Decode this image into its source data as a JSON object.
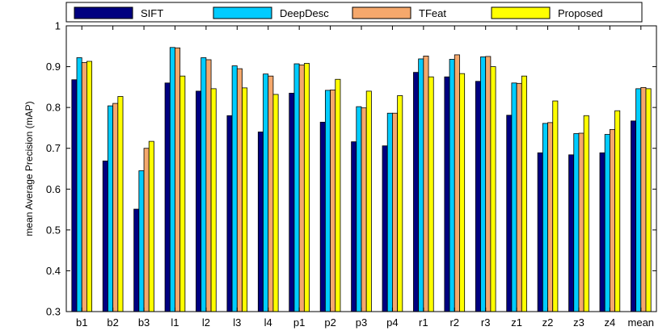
{
  "chart_data": {
    "type": "bar",
    "title": "",
    "xlabel": "",
    "ylabel": "mean Average Precision (mAP)",
    "ylim": [
      0.3,
      1.0
    ],
    "yticks": [
      0.3,
      0.4,
      0.5,
      0.6,
      0.7,
      0.8,
      0.9,
      1.0
    ],
    "ytick_labels": [
      "0.3",
      "0.4",
      "0.5",
      "0.6",
      "0.7",
      "0.8",
      "0.9",
      "1"
    ],
    "grid": false,
    "legend_position": "top",
    "categories": [
      "b1",
      "b2",
      "b3",
      "l1",
      "l2",
      "l3",
      "l4",
      "p1",
      "p2",
      "p3",
      "p4",
      "r1",
      "r2",
      "r3",
      "z1",
      "z2",
      "z3",
      "z4",
      "mean"
    ],
    "series": [
      {
        "name": "SIFT",
        "color": "#000080",
        "values": [
          0.868,
          0.669,
          0.551,
          0.86,
          0.84,
          0.78,
          0.74,
          0.835,
          0.764,
          0.716,
          0.706,
          0.886,
          0.875,
          0.864,
          0.781,
          0.689,
          0.684,
          0.689,
          0.767
        ]
      },
      {
        "name": "DeepDesc",
        "color": "#00CCFF",
        "values": [
          0.922,
          0.804,
          0.645,
          0.947,
          0.922,
          0.902,
          0.882,
          0.907,
          0.842,
          0.802,
          0.786,
          0.919,
          0.918,
          0.924,
          0.86,
          0.761,
          0.736,
          0.734,
          0.846
        ]
      },
      {
        "name": "TFeat",
        "color": "#F5A86C",
        "values": [
          0.91,
          0.81,
          0.7,
          0.946,
          0.917,
          0.895,
          0.877,
          0.904,
          0.843,
          0.799,
          0.786,
          0.926,
          0.929,
          0.925,
          0.859,
          0.763,
          0.737,
          0.746,
          0.849
        ]
      },
      {
        "name": "Proposed",
        "color": "#FFFF00",
        "values": [
          0.913,
          0.827,
          0.717,
          0.877,
          0.846,
          0.848,
          0.832,
          0.908,
          0.869,
          0.84,
          0.829,
          0.875,
          0.883,
          0.9,
          0.877,
          0.816,
          0.78,
          0.792,
          0.846
        ]
      }
    ]
  }
}
